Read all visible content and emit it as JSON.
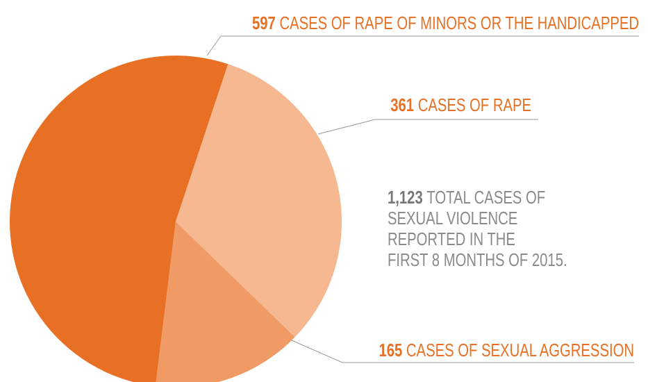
{
  "chart_data": {
    "type": "pie",
    "categories": [
      "CASES OF RAPE OF MINORS OR THE HANDICAPPED",
      "CASES OF RAPE",
      "CASES OF SEXUAL AGGRESSION"
    ],
    "values": [
      597,
      361,
      165
    ],
    "colors": [
      "#e87024",
      "#f5b891",
      "#f09a66"
    ],
    "annotation": {
      "number": "1,123",
      "lines": [
        "TOTAL CASES OF",
        "SEXUAL VIOLENCE",
        "REPORTED IN THE",
        "FIRST 8 MONTHS OF 2015."
      ]
    }
  }
}
